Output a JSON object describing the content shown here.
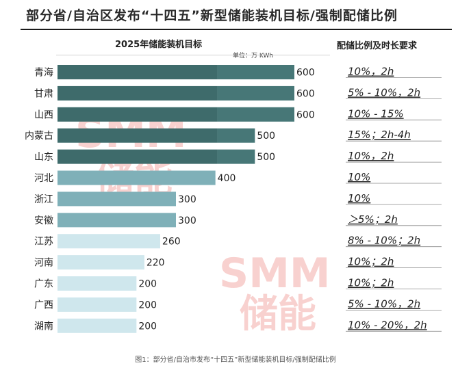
{
  "title": "部分省/自治区发布“十四五”新型储能装机目标/强制配储比例",
  "chart_title": "2025年储能装机目标",
  "unit": "单位：万 KWh",
  "right_header": "配储比例及时长要求",
  "caption": "图1：部分省/自治市发布“十四五”新型储能装机目标/强制配储比例",
  "watermark": {
    "logo": "SMM",
    "text": "储能"
  },
  "colors": {
    "dark": "#3e6b6b",
    "dark_light": "#477777",
    "mid": "#7fb0b8",
    "light": "#9cc4cb",
    "pale": "#cfe7ed",
    "watermark": "#e4342a"
  },
  "chart_data": {
    "type": "bar",
    "orientation": "horizontal",
    "categories": [
      "青海",
      "甘肃",
      "山西",
      "内蒙古",
      "山东",
      "河北",
      "浙江",
      "安徽",
      "江苏",
      "河南",
      "广东",
      "广西",
      "湖南"
    ],
    "values": [
      600,
      600,
      600,
      500,
      500,
      400,
      300,
      300,
      260,
      220,
      200,
      200,
      200
    ],
    "requirements": [
      "10%，2h",
      "5% - 10%，2h",
      "10% - 15%",
      "15%；2h-4h",
      "10%，2h",
      "10%",
      "10%",
      "＞5%；2h",
      "8% - 10%；2h",
      "10%；2h",
      "10%；2h",
      "5% - 10%，2h",
      "10% - 20%，2h"
    ],
    "title": "2025年储能装机目标",
    "unit": "万 KWh",
    "xlim": [
      0,
      600
    ],
    "grid": false
  }
}
